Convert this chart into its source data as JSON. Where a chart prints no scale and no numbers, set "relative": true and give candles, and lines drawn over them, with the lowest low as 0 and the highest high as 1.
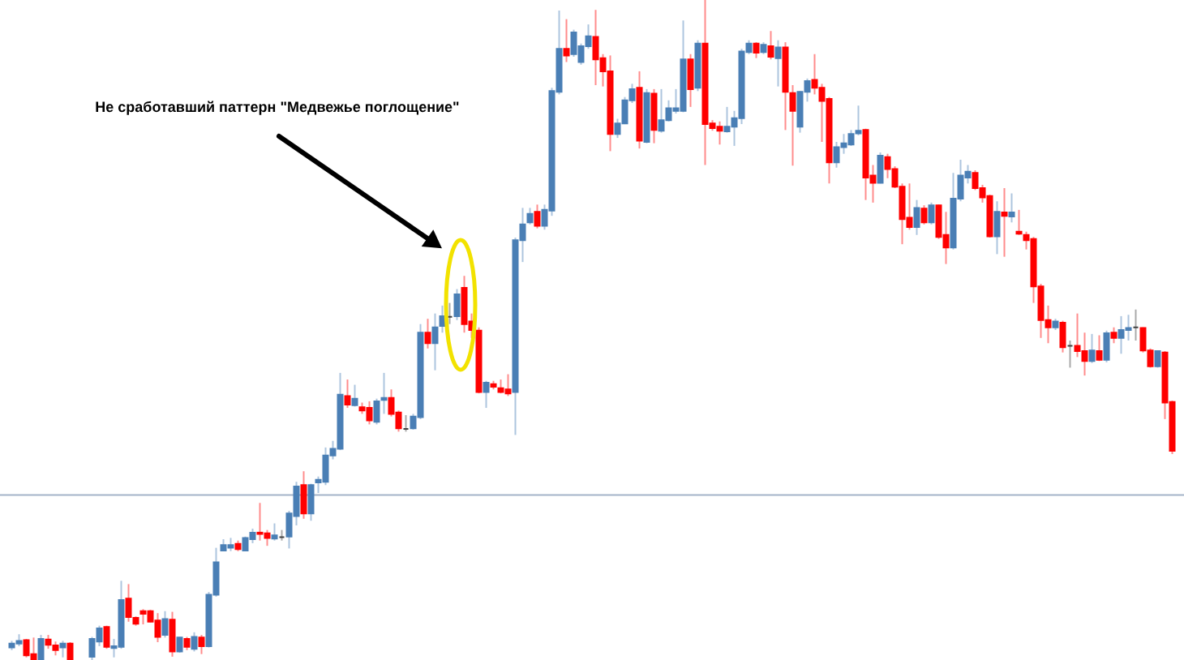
{
  "chart_data": {
    "type": "candlestick",
    "relative": true,
    "annotations": [
      "Не сработавший паттерн \"Медвежье поглощение\""
    ],
    "colors": [
      "#4a7fb5",
      "#4a7fb5",
      "#ff0000",
      "#ff0000",
      "#4a7fb5",
      "#ff0000",
      "#ff0000",
      "#4a7fb5",
      "#ff0000",
      null,
      null,
      "#4a7fb5",
      "#4a7fb5",
      "#ff0000",
      "#4a7fb5",
      "#4a7fb5",
      "#ff0000",
      "#ff0000",
      "#ff0000",
      "#ff0000",
      "#ff0000",
      "#4a7fb5",
      "#ff0000",
      "#4a7fb5",
      "#ff0000",
      "#4a7fb5",
      "#ff0000",
      "#4a7fb5",
      "#4a7fb5",
      "#4a7fb5",
      "#4a7fb5",
      "#ff0000",
      "#4a7fb5",
      "#4a7fb5",
      "#ff0000",
      "#ff0000",
      "#4a7fb5",
      "#404040",
      "#4a7fb5",
      "#4a7fb5",
      "#ff0000",
      "#4a7fb5",
      "#4a7fb5",
      "#4a7fb5",
      "#4a7fb5",
      "#4a7fb5",
      "#ff0000",
      "#4a7fb5",
      "#ff0000",
      "#ff0000",
      "#4a7fb5",
      "#4a7fb5",
      "#ff0000",
      "#ff0000",
      "#404040",
      "#4a7fb5",
      "#4a7fb5",
      "#ff0000",
      "#4a7fb5",
      "#4a7fb5",
      "#404040",
      "#4a7fb5",
      "#ff0000",
      "#ff0000",
      "#ff0000",
      "#4a7fb5",
      "#ff0000",
      "#ff0000",
      "#ff0000",
      "#4a7fb5",
      "#4a7fb5",
      "#4a7fb5",
      "#ff0000",
      "#4a7fb5",
      "#4a7fb5",
      "#4a7fb5",
      "#ff0000",
      "#4a7fb5",
      "#4a7fb5",
      "#4a7fb5",
      "#ff0000",
      "#ff0000",
      "#ff0000",
      "#4a7fb5",
      "#4a7fb5",
      "#4a7fb5",
      "#ff0000",
      "#4a7fb5",
      "#ff0000",
      "#4a7fb5",
      "#4a7fb5",
      "#4a7fb5",
      "#4a7fb5",
      "#ff0000",
      "#4a7fb5",
      "#ff0000",
      "#ff0000",
      "#ff0000",
      "#4a7fb5",
      "#4a7fb5",
      "#4a7fb5",
      "#4a7fb5",
      "#ff0000",
      "#4a7fb5",
      "#ff0000",
      "#4a7fb5",
      "#ff0000",
      "#ff0000",
      "#4a7fb5",
      "#4a7fb5",
      "#ff0000",
      "#ff0000",
      "#ff0000",
      "#4a7fb5",
      "#4a7fb5",
      "#4a7fb5",
      "#4a7fb5",
      "#ff0000",
      "#ff0000",
      "#4a7fb5",
      "#ff0000",
      "#ff0000",
      "#ff0000",
      "#ff0000",
      "#4a7fb5",
      "#ff0000",
      "#4a7fb5",
      "#ff0000",
      "#ff0000",
      "#4a7fb5",
      "#4a7fb5",
      "#4a7fb5",
      "#ff0000",
      "#ff0000",
      "#ff0000",
      "#4a7fb5",
      "#ff0000",
      "#4a7fb5",
      "#ff0000",
      "#ff0000",
      "#ff0000",
      "#ff0000",
      "#ff0000",
      "#4a7fb5",
      "#ff0000",
      "#404040",
      "#ff0000",
      "#ff0000",
      "#4a7fb5",
      "#ff0000",
      "#4a7fb5",
      "#ff0000",
      "#4a7fb5",
      "#4a7fb5",
      "#404040",
      "#ff0000",
      "#ff0000",
      "#4a7fb5",
      "#ff0000",
      "#ff0000"
    ],
    "ref_lines": [
      {
        "axis": "y",
        "value": 0.25,
        "color": "#a3b4c8"
      }
    ],
    "categories": [
      null,
      null,
      null,
      null,
      null,
      null,
      null,
      null,
      null,
      null,
      null,
      null,
      null,
      null,
      null,
      null,
      null,
      null,
      null,
      null,
      null,
      null,
      null,
      null,
      null,
      null,
      null,
      null,
      null,
      null,
      null,
      null,
      null,
      null,
      null,
      null,
      null,
      null,
      null,
      null,
      null,
      null,
      null,
      null,
      null,
      null,
      null,
      null,
      null,
      null,
      null,
      null,
      null,
      null,
      null,
      null,
      null,
      null,
      null,
      null,
      null,
      null,
      null,
      null,
      null,
      null,
      null,
      null,
      null,
      null,
      null,
      null,
      null,
      null,
      null,
      null,
      null,
      null,
      null,
      null,
      null,
      null,
      null,
      null,
      null,
      null,
      null,
      null,
      null,
      null,
      null,
      null,
      null,
      null,
      null,
      null,
      null,
      null,
      null,
      null,
      null,
      null,
      null,
      null,
      null,
      null,
      null,
      null,
      null,
      null,
      null,
      null,
      null,
      null,
      null,
      null,
      null,
      null,
      null,
      null,
      null,
      null,
      null,
      null,
      null,
      null,
      null,
      null,
      null,
      null,
      null,
      null,
      null,
      null,
      null,
      null,
      null,
      null,
      null,
      null,
      null,
      null,
      null,
      null,
      null,
      null,
      null,
      null,
      null,
      null,
      null,
      null,
      null,
      null,
      null,
      null,
      null,
      null,
      null,
      null
    ],
    "ohlc": [
      [
        0.019,
        0.029,
        0.015,
        0.025
      ],
      [
        0.025,
        0.039,
        0.021,
        0.029
      ],
      [
        0.03,
        0.032,
        0.004,
        0.007
      ],
      [
        0.009,
        0.034,
        0,
        0
      ],
      [
        0,
        0.038,
        0,
        0.032
      ],
      [
        0.031,
        0.038,
        0.017,
        0.023
      ],
      [
        0.022,
        0.028,
        0.007,
        0.015
      ],
      [
        0.019,
        0.029,
        0.004,
        0.025
      ],
      [
        0.025,
        0.027,
        0,
        0
      ],
      null,
      null,
      [
        0.005,
        0.035,
        0,
        0.032
      ],
      [
        0.028,
        0.052,
        0.021,
        0.048
      ],
      [
        0.05,
        0.052,
        0.017,
        0.02
      ],
      [
        0.018,
        0.032,
        0.004,
        0.021
      ],
      [
        0.02,
        0.12,
        0.017,
        0.091
      ],
      [
        0.093,
        0.115,
        0.058,
        0.065
      ],
      [
        0.064,
        0.066,
        0.052,
        0.055
      ],
      [
        0.074,
        0.077,
        0.054,
        0.07
      ],
      [
        0.074,
        0.076,
        0.057,
        0.058
      ],
      [
        0.06,
        0.071,
        0.027,
        0.035
      ],
      [
        0.038,
        0.074,
        0.034,
        0.062
      ],
      [
        0.061,
        0.073,
        0.005,
        0.013
      ],
      [
        0.013,
        0.035,
        0.011,
        0.034
      ],
      [
        0.032,
        0.035,
        0.015,
        0.02
      ],
      [
        0.017,
        0.042,
        0.013,
        0.035
      ],
      [
        0.034,
        0.038,
        0.009,
        0.021
      ],
      [
        0.021,
        0.103,
        0.019,
        0.099
      ],
      [
        0.099,
        0.17,
        0.096,
        0.148
      ],
      [
        0.166,
        0.183,
        0.165,
        0.174
      ],
      [
        0.17,
        0.185,
        0.165,
        0.174
      ],
      [
        0.176,
        0.181,
        0.165,
        0.168
      ],
      [
        0.166,
        0.187,
        0.165,
        0.185
      ],
      [
        0.183,
        0.199,
        0.177,
        0.193
      ],
      [
        0.193,
        0.238,
        0.181,
        0.191
      ],
      [
        0.192,
        0.197,
        0.173,
        0.185
      ],
      [
        0.184,
        0.207,
        0.181,
        0.189
      ],
      [
        0.186,
        0.197,
        0.181,
        0.186
      ],
      [
        0.187,
        0.226,
        0.169,
        0.222
      ],
      [
        0.218,
        0.27,
        0.204,
        0.263
      ],
      [
        0.265,
        0.286,
        0.214,
        0.222
      ],
      [
        0.222,
        0.267,
        0.211,
        0.265
      ],
      [
        0.269,
        0.278,
        0.253,
        0.273
      ],
      [
        0.27,
        0.322,
        0.265,
        0.31
      ],
      [
        0.31,
        0.332,
        0.304,
        0.32
      ],
      [
        0.32,
        0.435,
        0.318,
        0.402
      ],
      [
        0.4,
        0.425,
        0.382,
        0.387
      ],
      [
        0.386,
        0.417,
        0.384,
        0.396
      ],
      [
        0.383,
        0.39,
        0.373,
        0.378
      ],
      [
        0.382,
        0.392,
        0.357,
        0.363
      ],
      [
        0.361,
        0.396,
        0.357,
        0.392
      ],
      [
        0.394,
        0.435,
        0.373,
        0.397
      ],
      [
        0.397,
        0.41,
        0.369,
        0.373
      ],
      [
        0.375,
        0.378,
        0.346,
        0.351
      ],
      [
        0.35,
        0.371,
        0.346,
        0.35
      ],
      [
        0.351,
        0.373,
        0.349,
        0.369
      ],
      [
        0.368,
        0.509,
        0.365,
        0.496
      ],
      [
        0.496,
        0.517,
        0.472,
        0.48
      ],
      [
        0.48,
        0.525,
        0.439,
        0.504
      ],
      [
        0.506,
        0.537,
        0.496,
        0.521
      ],
      [
        0.52,
        0.541,
        0.509,
        0.52
      ],
      [
        0.521,
        0.562,
        0.515,
        0.554
      ],
      [
        0.564,
        0.582,
        0.496,
        0.509
      ],
      [
        0.513,
        0.525,
        0.488,
        0.5
      ],
      [
        0.499,
        0.504,
        0.404,
        0.406
      ],
      [
        0.406,
        0.423,
        0.382,
        0.42
      ],
      [
        0.418,
        0.423,
        0.41,
        0.414
      ],
      [
        0.412,
        0.425,
        0.404,
        0.406
      ],
      [
        0.41,
        0.433,
        0.4,
        0.404
      ],
      [
        0.406,
        0.64,
        0.341,
        0.636
      ],
      [
        0.636,
        0.685,
        0.603,
        0.66
      ],
      [
        0.663,
        0.685,
        0.66,
        0.676
      ],
      [
        0.679,
        0.69,
        0.654,
        0.658
      ],
      [
        0.658,
        0.69,
        0.652,
        0.682
      ],
      [
        0.681,
        0.867,
        0.673,
        0.862
      ],
      [
        0.861,
        0.984,
        0.857,
        0.926
      ],
      [
        0.926,
        0.971,
        0.906,
        0.916
      ],
      [
        0.918,
        0.955,
        0.914,
        0.951
      ],
      [
        0.906,
        0.934,
        0.902,
        0.93
      ],
      [
        0.93,
        0.963,
        0.926,
        0.945
      ],
      [
        0.944,
        0.985,
        0.871,
        0.91
      ],
      [
        0.912,
        0.918,
        0.869,
        0.892
      ],
      [
        0.892,
        0.916,
        0.771,
        0.797
      ],
      [
        0.797,
        0.82,
        0.791,
        0.813
      ],
      [
        0.813,
        0.853,
        0.812,
        0.848
      ],
      [
        0.848,
        0.873,
        0.844,
        0.865
      ],
      [
        0.867,
        0.892,
        0.775,
        0.787
      ],
      [
        0.785,
        0.865,
        0.783,
        0.859
      ],
      [
        0.858,
        0.865,
        0.783,
        0.803
      ],
      [
        0.802,
        0.865,
        0.799,
        0.818
      ],
      [
        0.818,
        0.848,
        0.816,
        0.836
      ],
      [
        0.832,
        0.865,
        0.828,
        0.836
      ],
      [
        0.832,
        0.969,
        0.83,
        0.91
      ],
      [
        0.91,
        0.918,
        0.838,
        0.865
      ],
      [
        0.867,
        0.939,
        0.862,
        0.934
      ],
      [
        0.934,
        1,
        0.75,
        0.812
      ],
      [
        0.813,
        0.818,
        0.802,
        0.806
      ],
      [
        0.808,
        0.816,
        0.781,
        0.802
      ],
      [
        0.801,
        0.838,
        0.799,
        0.808
      ],
      [
        0.808,
        0.832,
        0.779,
        0.821
      ],
      [
        0.821,
        0.926,
        0.812,
        0.922
      ],
      [
        0.921,
        0.939,
        0.918,
        0.934
      ],
      [
        0.934,
        0.936,
        0.912,
        0.92
      ],
      [
        0.921,
        0.936,
        0.918,
        0.932
      ],
      [
        0.93,
        0.953,
        0.91,
        0.914
      ],
      [
        0.912,
        0.939,
        0.869,
        0.928
      ],
      [
        0.928,
        0.936,
        0.803,
        0.861
      ],
      [
        0.859,
        0.871,
        0.749,
        0.832
      ],
      [
        0.808,
        0.862,
        0.799,
        0.861
      ],
      [
        0.861,
        0.881,
        0.846,
        0.877
      ],
      [
        0.879,
        0.918,
        0.857,
        0.867
      ],
      [
        0.867,
        0.873,
        0.785,
        0.847
      ],
      [
        0.85,
        0.853,
        0.722,
        0.754
      ],
      [
        0.754,
        0.785,
        0.746,
        0.777
      ],
      [
        0.777,
        0.797,
        0.767,
        0.783
      ],
      [
        0.781,
        0.803,
        0.779,
        0.797
      ],
      [
        0.798,
        0.84,
        0.795,
        0.802
      ],
      [
        0.803,
        0.805,
        0.697,
        0.731
      ],
      [
        0.734,
        0.75,
        0.693,
        0.723
      ],
      [
        0.723,
        0.769,
        0.722,
        0.764
      ],
      [
        0.762,
        0.767,
        0.73,
        0.744
      ],
      [
        0.744,
        0.748,
        0.715,
        0.717
      ],
      [
        0.717,
        0.722,
        0.63,
        0.668
      ],
      [
        0.67,
        0.722,
        0.652,
        0.656
      ],
      [
        0.656,
        0.697,
        0.644,
        0.685
      ],
      [
        0.684,
        0.689,
        0.66,
        0.663
      ],
      [
        0.663,
        0.693,
        0.66,
        0.689
      ],
      [
        0.689,
        0.69,
        0.638,
        0.641
      ],
      [
        0.644,
        0.679,
        0.6,
        0.625
      ],
      [
        0.625,
        0.738,
        0.622,
        0.699
      ],
      [
        0.699,
        0.758,
        0.695,
        0.734
      ],
      [
        0.731,
        0.75,
        0.722,
        0.74
      ],
      [
        0.738,
        0.742,
        0.712,
        0.715
      ],
      [
        0.715,
        0.72,
        0.693,
        0.701
      ],
      [
        0.703,
        0.705,
        0.64,
        0.642
      ],
      [
        0.642,
        0.695,
        0.615,
        0.679
      ],
      [
        0.678,
        0.715,
        0.611,
        0.673
      ],
      [
        0.672,
        0.707,
        0.663,
        0.678
      ],
      [
        0.649,
        0.682,
        0.644,
        0.646
      ],
      [
        0.644,
        0.649,
        0.622,
        0.636
      ],
      [
        0.638,
        0.641,
        0.541,
        0.566
      ],
      [
        0.566,
        0.57,
        0.488,
        0.515
      ],
      [
        0.515,
        0.537,
        0.48,
        0.504
      ],
      [
        0.504,
        0.517,
        0.5,
        0.513
      ],
      [
        0.511,
        0.514,
        0.466,
        0.474
      ],
      [
        0.476,
        0.484,
        0.443,
        0.476
      ],
      [
        0.476,
        0.525,
        0.459,
        0.468
      ],
      [
        0.468,
        0.496,
        0.431,
        0.453
      ],
      [
        0.453,
        0.494,
        0.45,
        0.469
      ],
      [
        0.468,
        0.492,
        0.453,
        0.455
      ],
      [
        0.455,
        0.499,
        0.451,
        0.495
      ],
      [
        0.496,
        0.504,
        0.48,
        0.488
      ],
      [
        0.488,
        0.521,
        0.464,
        0.5
      ],
      [
        0.5,
        0.523,
        0.484,
        0.503
      ],
      [
        0.504,
        0.531,
        0.484,
        0.504
      ],
      [
        0.503,
        0.504,
        0.466,
        0.469
      ],
      [
        0.469,
        0.472,
        0.443,
        0.445
      ],
      [
        0.445,
        0.469,
        0.443,
        0.468
      ],
      [
        0.466,
        0.468,
        0.365,
        0.39
      ],
      [
        0.391,
        0.393,
        0.312,
        0.317
      ]
    ]
  }
}
